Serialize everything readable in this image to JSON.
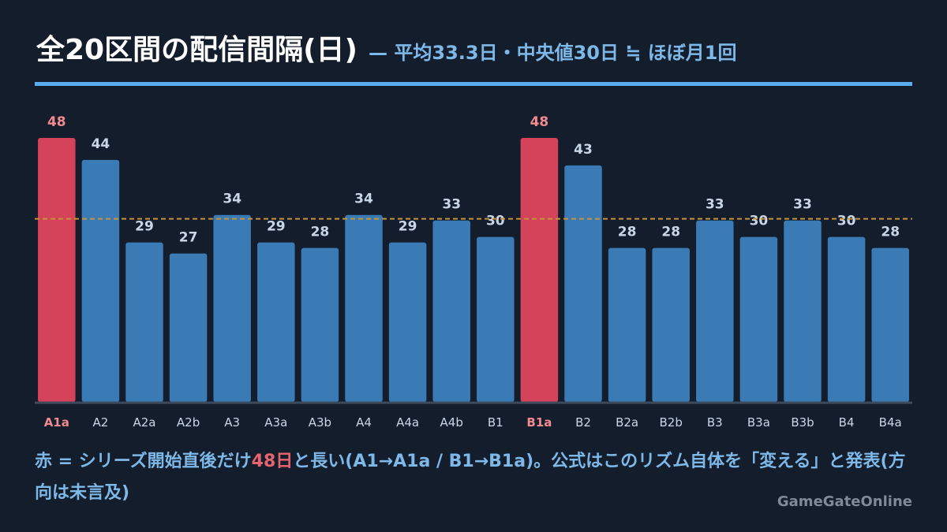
{
  "header": {
    "title": "全20区間の配信間隔(日)",
    "subtitle": "— 平均33.3日・中央値30日 ≒ ほぼ月1回"
  },
  "colors": {
    "background": "#141d2b",
    "bar_normal": "#3a7ab5",
    "bar_highlight": "#d4435a",
    "label_normal": "#c8d6e6",
    "label_highlight": "#f08a8f",
    "reference_line": "#c8943a",
    "accent_rule": "#5aaef0"
  },
  "chart_data": {
    "type": "bar",
    "categories": [
      "A1a",
      "A2",
      "A2a",
      "A2b",
      "A3",
      "A3a",
      "A3b",
      "A4",
      "A4a",
      "A4b",
      "B1",
      "B1a",
      "B2",
      "B2a",
      "B2b",
      "B3",
      "B3a",
      "B3b",
      "B4",
      "B4a"
    ],
    "values": [
      48,
      44,
      29,
      27,
      34,
      29,
      28,
      34,
      29,
      33,
      30,
      48,
      43,
      28,
      28,
      33,
      30,
      33,
      30,
      28
    ],
    "highlight": [
      true,
      false,
      false,
      false,
      false,
      false,
      false,
      false,
      false,
      false,
      false,
      true,
      false,
      false,
      false,
      false,
      false,
      false,
      false,
      false
    ],
    "reference_line": 33.3,
    "ylim": [
      0,
      48
    ],
    "grid": false
  },
  "footnote": {
    "part1": "赤 = シリーズ開始直後だけ",
    "highlight": "48日",
    "part2": "と長い(A1→A1a / B1→B1a)。公式はこのリズム自体を「変える」と発表(方向は未言及)"
  },
  "credit": "GameGateOnline"
}
